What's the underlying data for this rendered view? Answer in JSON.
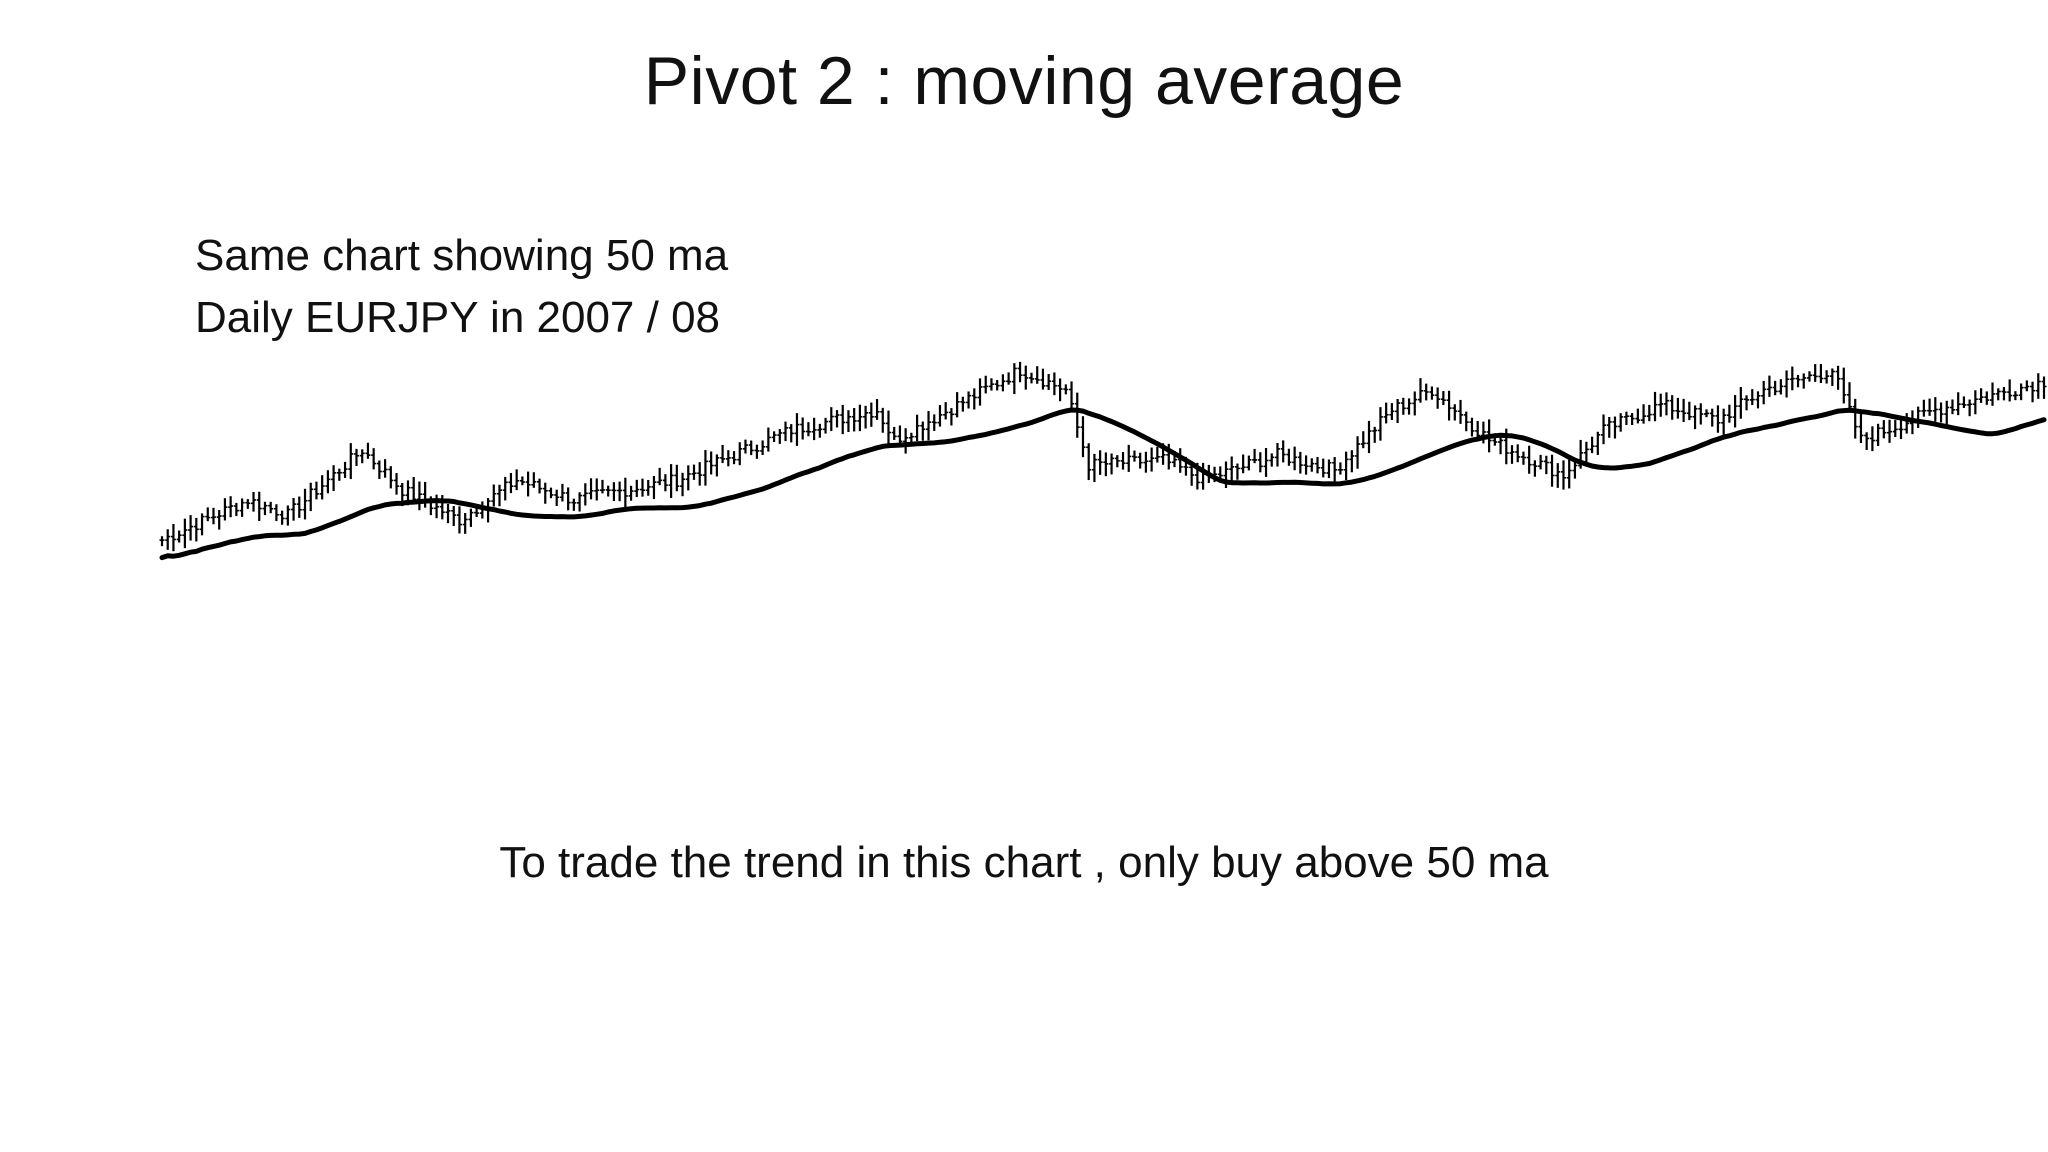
{
  "slide": {
    "title": "Pivot 2 : moving average",
    "subtitle_line1": "Same chart showing 50 ma",
    "subtitle_line2": "Daily EURJPY in 2007 / 08",
    "caption": "To trade the trend in this chart , only buy above 50 ma"
  },
  "colors": {
    "background": "#ffffff",
    "bars": "#000000",
    "moving_average": "#000000",
    "text": "#111111"
  },
  "chart_data": {
    "type": "ohlc_bar_with_line",
    "title": "",
    "xlabel": "",
    "ylabel": "",
    "grid": false,
    "axes_visible": false,
    "bar_count": 330,
    "price_path_anchors": [
      [
        0,
        0.3
      ],
      [
        15,
        0.38
      ],
      [
        22,
        0.35
      ],
      [
        35,
        0.48
      ],
      [
        42,
        0.4
      ],
      [
        52,
        0.34
      ],
      [
        62,
        0.42
      ],
      [
        72,
        0.38
      ],
      [
        90,
        0.42
      ],
      [
        110,
        0.52
      ],
      [
        125,
        0.56
      ],
      [
        128,
        0.5
      ],
      [
        150,
        0.64
      ],
      [
        158,
        0.6
      ],
      [
        162,
        0.45
      ],
      [
        175,
        0.46
      ],
      [
        182,
        0.42
      ],
      [
        195,
        0.47
      ],
      [
        205,
        0.44
      ],
      [
        215,
        0.56
      ],
      [
        222,
        0.6
      ],
      [
        232,
        0.5
      ],
      [
        245,
        0.43
      ],
      [
        252,
        0.52
      ],
      [
        262,
        0.57
      ],
      [
        272,
        0.54
      ],
      [
        280,
        0.6
      ],
      [
        292,
        0.64
      ],
      [
        297,
        0.5
      ],
      [
        310,
        0.56
      ],
      [
        330,
        0.62
      ]
    ],
    "price_scale_note": "relative levels 0-1; chart prints no axis values",
    "series": [
      {
        "kind": "price_bars",
        "color": "#000000"
      },
      {
        "kind": "moving_average",
        "period": 50,
        "color": "#000000"
      }
    ]
  }
}
